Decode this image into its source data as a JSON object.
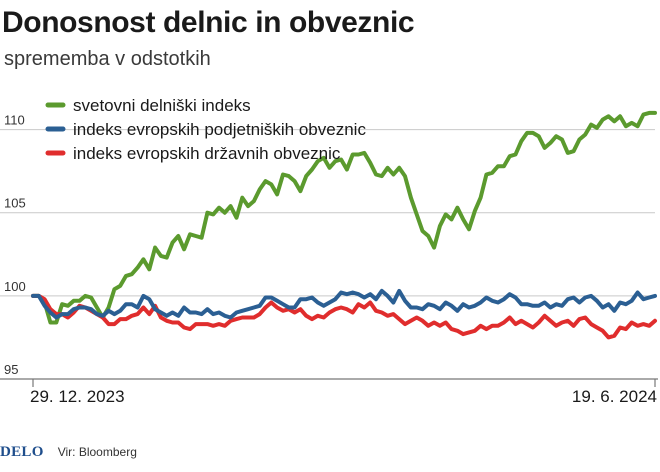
{
  "title": "Donosnost delnic in obveznic",
  "subtitle": "sprememba v odstotkih",
  "footer": {
    "logo": "DELO",
    "source": "Vir: Bloomberg"
  },
  "colors": {
    "green": "#5b9a2e",
    "blue": "#2b5f93",
    "red": "#e02d2d",
    "grid": "#c9c9c9",
    "axis": "#777777"
  },
  "chart_data": {
    "type": "line",
    "xlabel": "",
    "ylabel": "",
    "x_tick_labels": [
      "29. 12. 2023",
      "19. 6. 2024"
    ],
    "x_range": [
      "2023-12-29",
      "2024-06-19"
    ],
    "ylim": [
      95,
      112.5
    ],
    "yticks": [
      95,
      100,
      105,
      110
    ],
    "grid": true,
    "legend": "top-left",
    "series": [
      {
        "name": "svetovni delniški indeks",
        "color": "#5b9a2e",
        "values": [
          100.0,
          100.0,
          99.6,
          98.4,
          98.4,
          99.5,
          99.4,
          99.7,
          99.7,
          100.0,
          99.9,
          99.3,
          98.7,
          99.3,
          100.4,
          100.6,
          101.2,
          101.3,
          101.7,
          102.2,
          101.6,
          102.9,
          102.4,
          102.3,
          103.2,
          103.6,
          102.8,
          103.7,
          103.6,
          103.5,
          105.0,
          104.9,
          105.3,
          105.0,
          105.4,
          104.7,
          105.9,
          105.4,
          105.7,
          106.4,
          106.9,
          106.7,
          106.1,
          107.3,
          107.2,
          106.9,
          106.3,
          107.2,
          107.6,
          108.1,
          108.3,
          107.7,
          108.1,
          108.2,
          107.6,
          108.5,
          108.5,
          108.6,
          108.0,
          107.3,
          107.2,
          107.7,
          107.3,
          107.7,
          107.2,
          105.9,
          104.9,
          103.9,
          103.6,
          102.9,
          104.2,
          104.9,
          104.6,
          105.3,
          104.6,
          104.0,
          105.1,
          105.9,
          107.3,
          107.4,
          107.8,
          107.8,
          108.4,
          108.5,
          109.3,
          109.8,
          109.8,
          109.6,
          108.9,
          109.2,
          109.6,
          109.4,
          108.6,
          108.7,
          109.4,
          109.7,
          110.3,
          110.1,
          110.6,
          110.8,
          110.5,
          110.8,
          110.2,
          110.4,
          110.2,
          110.9,
          111.0,
          111.0
        ]
      },
      {
        "name": "indeks evropskih podjetniških obveznic",
        "color": "#2b5f93",
        "values": [
          100.0,
          100.0,
          99.4,
          99.0,
          98.7,
          98.9,
          98.9,
          99.2,
          99.3,
          99.3,
          99.2,
          98.9,
          98.8,
          99.1,
          98.9,
          99.1,
          99.5,
          99.5,
          99.3,
          100.0,
          99.8,
          99.2,
          99.0,
          98.8,
          99.0,
          98.8,
          99.3,
          99.0,
          99.0,
          98.9,
          99.2,
          98.9,
          99.0,
          98.8,
          98.7,
          99.0,
          99.1,
          99.2,
          99.3,
          99.4,
          99.9,
          99.9,
          99.7,
          99.5,
          99.3,
          99.3,
          99.8,
          99.8,
          99.9,
          99.6,
          99.4,
          99.6,
          99.8,
          100.2,
          100.1,
          100.2,
          100.1,
          99.9,
          100.1,
          99.8,
          100.3,
          100.0,
          99.6,
          100.3,
          99.7,
          99.3,
          99.3,
          99.2,
          99.5,
          99.4,
          99.2,
          99.6,
          99.4,
          99.1,
          99.5,
          99.3,
          99.4,
          99.6,
          99.9,
          99.7,
          99.6,
          99.8,
          100.1,
          99.9,
          99.5,
          99.5,
          99.4,
          99.4,
          99.6,
          99.3,
          99.5,
          99.4,
          99.8,
          99.9,
          99.6,
          99.9,
          100.0,
          99.7,
          99.3,
          99.5,
          99.1,
          99.6,
          99.5,
          99.7,
          100.2,
          99.8,
          99.9,
          100.0
        ]
      },
      {
        "name": "indeks evropskih državnih obveznic",
        "color": "#e02d2d",
        "values": [
          100.0,
          100.0,
          99.8,
          99.2,
          98.9,
          98.9,
          98.7,
          99.0,
          99.4,
          99.3,
          99.1,
          98.9,
          98.7,
          98.3,
          98.3,
          98.6,
          98.6,
          98.8,
          98.9,
          99.3,
          98.9,
          99.4,
          98.7,
          98.5,
          98.4,
          98.4,
          98.1,
          98.0,
          98.3,
          98.3,
          98.3,
          98.2,
          98.3,
          98.2,
          98.5,
          98.6,
          98.7,
          98.7,
          98.7,
          98.9,
          99.3,
          99.6,
          99.3,
          99.1,
          99.2,
          99.0,
          99.2,
          98.8,
          98.6,
          98.8,
          98.7,
          99.0,
          99.2,
          99.3,
          99.2,
          99.0,
          99.5,
          99.3,
          99.6,
          99.1,
          99.0,
          98.8,
          98.9,
          98.6,
          98.3,
          98.5,
          98.7,
          98.5,
          98.2,
          98.4,
          98.2,
          98.4,
          98.0,
          97.9,
          97.7,
          97.8,
          97.9,
          98.2,
          98.0,
          98.2,
          98.2,
          98.4,
          98.7,
          98.3,
          98.5,
          98.3,
          98.1,
          98.4,
          98.8,
          98.5,
          98.2,
          98.4,
          98.5,
          98.2,
          98.6,
          98.7,
          98.3,
          98.1,
          97.9,
          97.5,
          97.6,
          98.1,
          98.0,
          98.4,
          98.2,
          98.3,
          98.2,
          98.5
        ]
      }
    ]
  }
}
